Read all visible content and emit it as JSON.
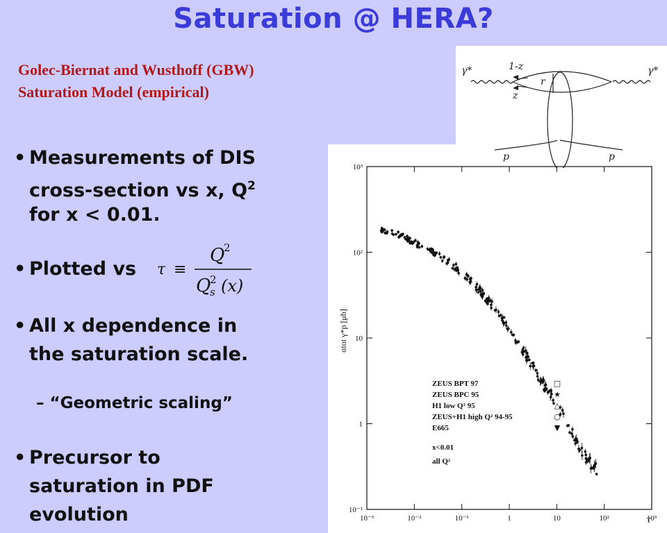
{
  "title": "Saturation @ HERA?",
  "subtitle": {
    "line1": "Golec-Biernat and Wusthoff (GBW)",
    "line2": "Saturation Model (empirical)"
  },
  "bullets": {
    "b1_line1": "Measurements of DIS",
    "b1_line2": "cross-section vs x, Q",
    "b1_sup": "2",
    "b1_line3": "for x < 0.01.",
    "b2": "Plotted vs",
    "b3_line1": "All x dependence in",
    "b3_line2": "the saturation scale.",
    "sub1": "– “Geometric scaling”",
    "b4_line1": "Precursor to",
    "b4_line2": "saturation in PDF",
    "b4_line3": "evolution",
    "bullet_glyph": "•"
  },
  "formula": {
    "lhs": "τ",
    "eq": "≡",
    "num": "Q",
    "num_sup": "2",
    "den": "Q",
    "den_sup": "2",
    "den_sub": "s",
    "den_arg": "(x)"
  },
  "diagram": {
    "gamma_left": "γ*",
    "gamma_right": "γ*",
    "one_minus_z": "1-z",
    "z": "z",
    "r": "r",
    "p_left": "p",
    "p_right": "p"
  },
  "chart_data": {
    "type": "scatter",
    "xscale": "log",
    "yscale": "log",
    "xlim": [
      0.001,
      1000
    ],
    "ylim": [
      0.1,
      1000
    ],
    "xlabel": "τ",
    "ylabel": "σtot γ*p [μb]",
    "x_ticks": [
      "10⁻³",
      "10⁻²",
      "10⁻¹",
      "1",
      "10",
      "10²",
      "10³"
    ],
    "y_ticks": [
      "10⁻¹",
      "1",
      "10",
      "10²",
      "10³"
    ],
    "legend": [
      {
        "label": "ZEUS BPT 97",
        "marker": "□"
      },
      {
        "label": "ZEUS BPC 95",
        "marker": "★"
      },
      {
        "label": "H1 low Q² 95",
        "marker": "△"
      },
      {
        "label": "ZEUS+H1 high Q² 94-95",
        "marker": "○"
      },
      {
        "label": "E665",
        "marker": "▼"
      }
    ],
    "annotations": [
      "x<0.01",
      "all Q²"
    ],
    "legend_position": "bottom-left",
    "curve_points": [
      {
        "x": 0.002,
        "y": 180
      },
      {
        "x": 0.005,
        "y": 160
      },
      {
        "x": 0.01,
        "y": 130
      },
      {
        "x": 0.02,
        "y": 110
      },
      {
        "x": 0.05,
        "y": 80
      },
      {
        "x": 0.1,
        "y": 58
      },
      {
        "x": 0.2,
        "y": 40
      },
      {
        "x": 0.5,
        "y": 22
      },
      {
        "x": 1,
        "y": 13
      },
      {
        "x": 2,
        "y": 7
      },
      {
        "x": 5,
        "y": 3
      },
      {
        "x": 10,
        "y": 1.7
      },
      {
        "x": 20,
        "y": 0.8
      },
      {
        "x": 50,
        "y": 0.35
      },
      {
        "x": 70,
        "y": 0.3
      }
    ]
  }
}
